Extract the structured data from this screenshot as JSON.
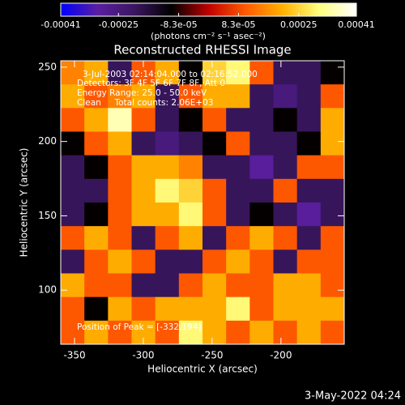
{
  "chart_data": {
    "type": "heatmap",
    "title": "Reconstructed RHESSI Image",
    "x_label": "Heliocentric X (arcsec)",
    "y_label": "Heliocentric Y (arcsec)",
    "colorbar_label": "(photons cm⁻² s⁻¹ asec⁻²)",
    "annotations": [
      "3-Jul-2003 02:14:04.000 to 02:16:52.000",
      "Detectors: 3F 4F 5F 6F 7F 8F, Att 0",
      "Energy Range: 25.0 - 50.0 keV",
      "Clean     Total counts: 2.06E+03",
      "Position of Peak = [-332,194]"
    ],
    "footer": "3-May-2022 04:24",
    "xlim": [
      -360,
      -154
    ],
    "ylim": [
      63.6,
      254.3
    ],
    "xticks": [
      -350,
      -300,
      -250,
      -200
    ],
    "yticks": [
      100,
      150,
      200,
      250
    ],
    "zlim": [
      -0.00041,
      0.00041
    ],
    "zticks": [
      -0.00041,
      -0.00025,
      {
        "value": -8.3e-05,
        "label": "-8.3e-05"
      },
      {
        "value": 8.3e-05,
        "label": "8.3e-05"
      },
      0.00025,
      0.00041
    ],
    "colormap": [
      "#0000ff",
      "#5a1fa0",
      "#3a1660",
      "#000000",
      "#c00000",
      "#ff5a00",
      "#ffb000",
      "#ffff80",
      "#ffffff"
    ],
    "z": [
      [
        0.00015,
        0.0002,
        -0.0002,
        0.0001,
        0.0002,
        -0.0001,
        0.00025,
        0.0003,
        0.0001,
        -0.0002,
        -0.0002,
        -0.0001
      ],
      [
        0.0002,
        0.0001,
        0.00015,
        0.0002,
        -0.0002,
        0.0001,
        0.0002,
        0.0002,
        -0.0002,
        -0.00025,
        -0.0002,
        0.0001
      ],
      [
        0.0001,
        0.0002,
        0.00035,
        0.0001,
        -0.0002,
        -0.0001,
        0.0001,
        -0.0002,
        -0.0002,
        -0.0001,
        -0.0002,
        0.0002
      ],
      [
        -0.0001,
        0.0001,
        0.0002,
        -0.0002,
        -0.00025,
        -0.0002,
        -0.0001,
        0.0001,
        -0.0002,
        -0.0002,
        -0.0001,
        0.0002
      ],
      [
        -0.0002,
        -0.0001,
        0.0001,
        0.0002,
        0.0002,
        0.00015,
        -0.0002,
        -0.0002,
        -0.0003,
        -0.0002,
        0.0001,
        0.0001
      ],
      [
        -0.0002,
        -0.0002,
        0.0001,
        0.0002,
        0.0003,
        0.00025,
        0.0001,
        -0.0002,
        -0.0002,
        0.0001,
        -0.0002,
        -0.0002
      ],
      [
        -0.0002,
        -0.0001,
        0.0001,
        0.0002,
        0.0002,
        0.0003,
        0.0001,
        -0.0002,
        -0.0001,
        -0.0002,
        -0.0003,
        -0.0002
      ],
      [
        0.0001,
        0.0002,
        0.0001,
        -0.0002,
        0.0001,
        0.0002,
        -0.0002,
        0.0001,
        0.0002,
        0.0001,
        -0.0002,
        0.0001
      ],
      [
        -0.0002,
        0.0001,
        0.0002,
        0.0001,
        -0.0002,
        -0.0002,
        0.0001,
        0.0002,
        0.0001,
        -0.0002,
        0.0001,
        0.0001
      ],
      [
        0.0002,
        0.0001,
        0.0001,
        -0.0002,
        -0.0002,
        0.0001,
        0.0002,
        0.0001,
        0.0001,
        0.0002,
        0.0002,
        0.0001
      ],
      [
        0.0001,
        -0.0001,
        0.0002,
        0.0001,
        0.0002,
        0.0002,
        0.0002,
        0.0003,
        0.0001,
        0.0002,
        0.0002,
        0.0002
      ],
      [
        0.0001,
        0.0002,
        0.0001,
        0.0002,
        0.0001,
        0.0003,
        0.0002,
        0.0001,
        0.0002,
        0.0001,
        0.0002,
        0.0001
      ]
    ]
  }
}
